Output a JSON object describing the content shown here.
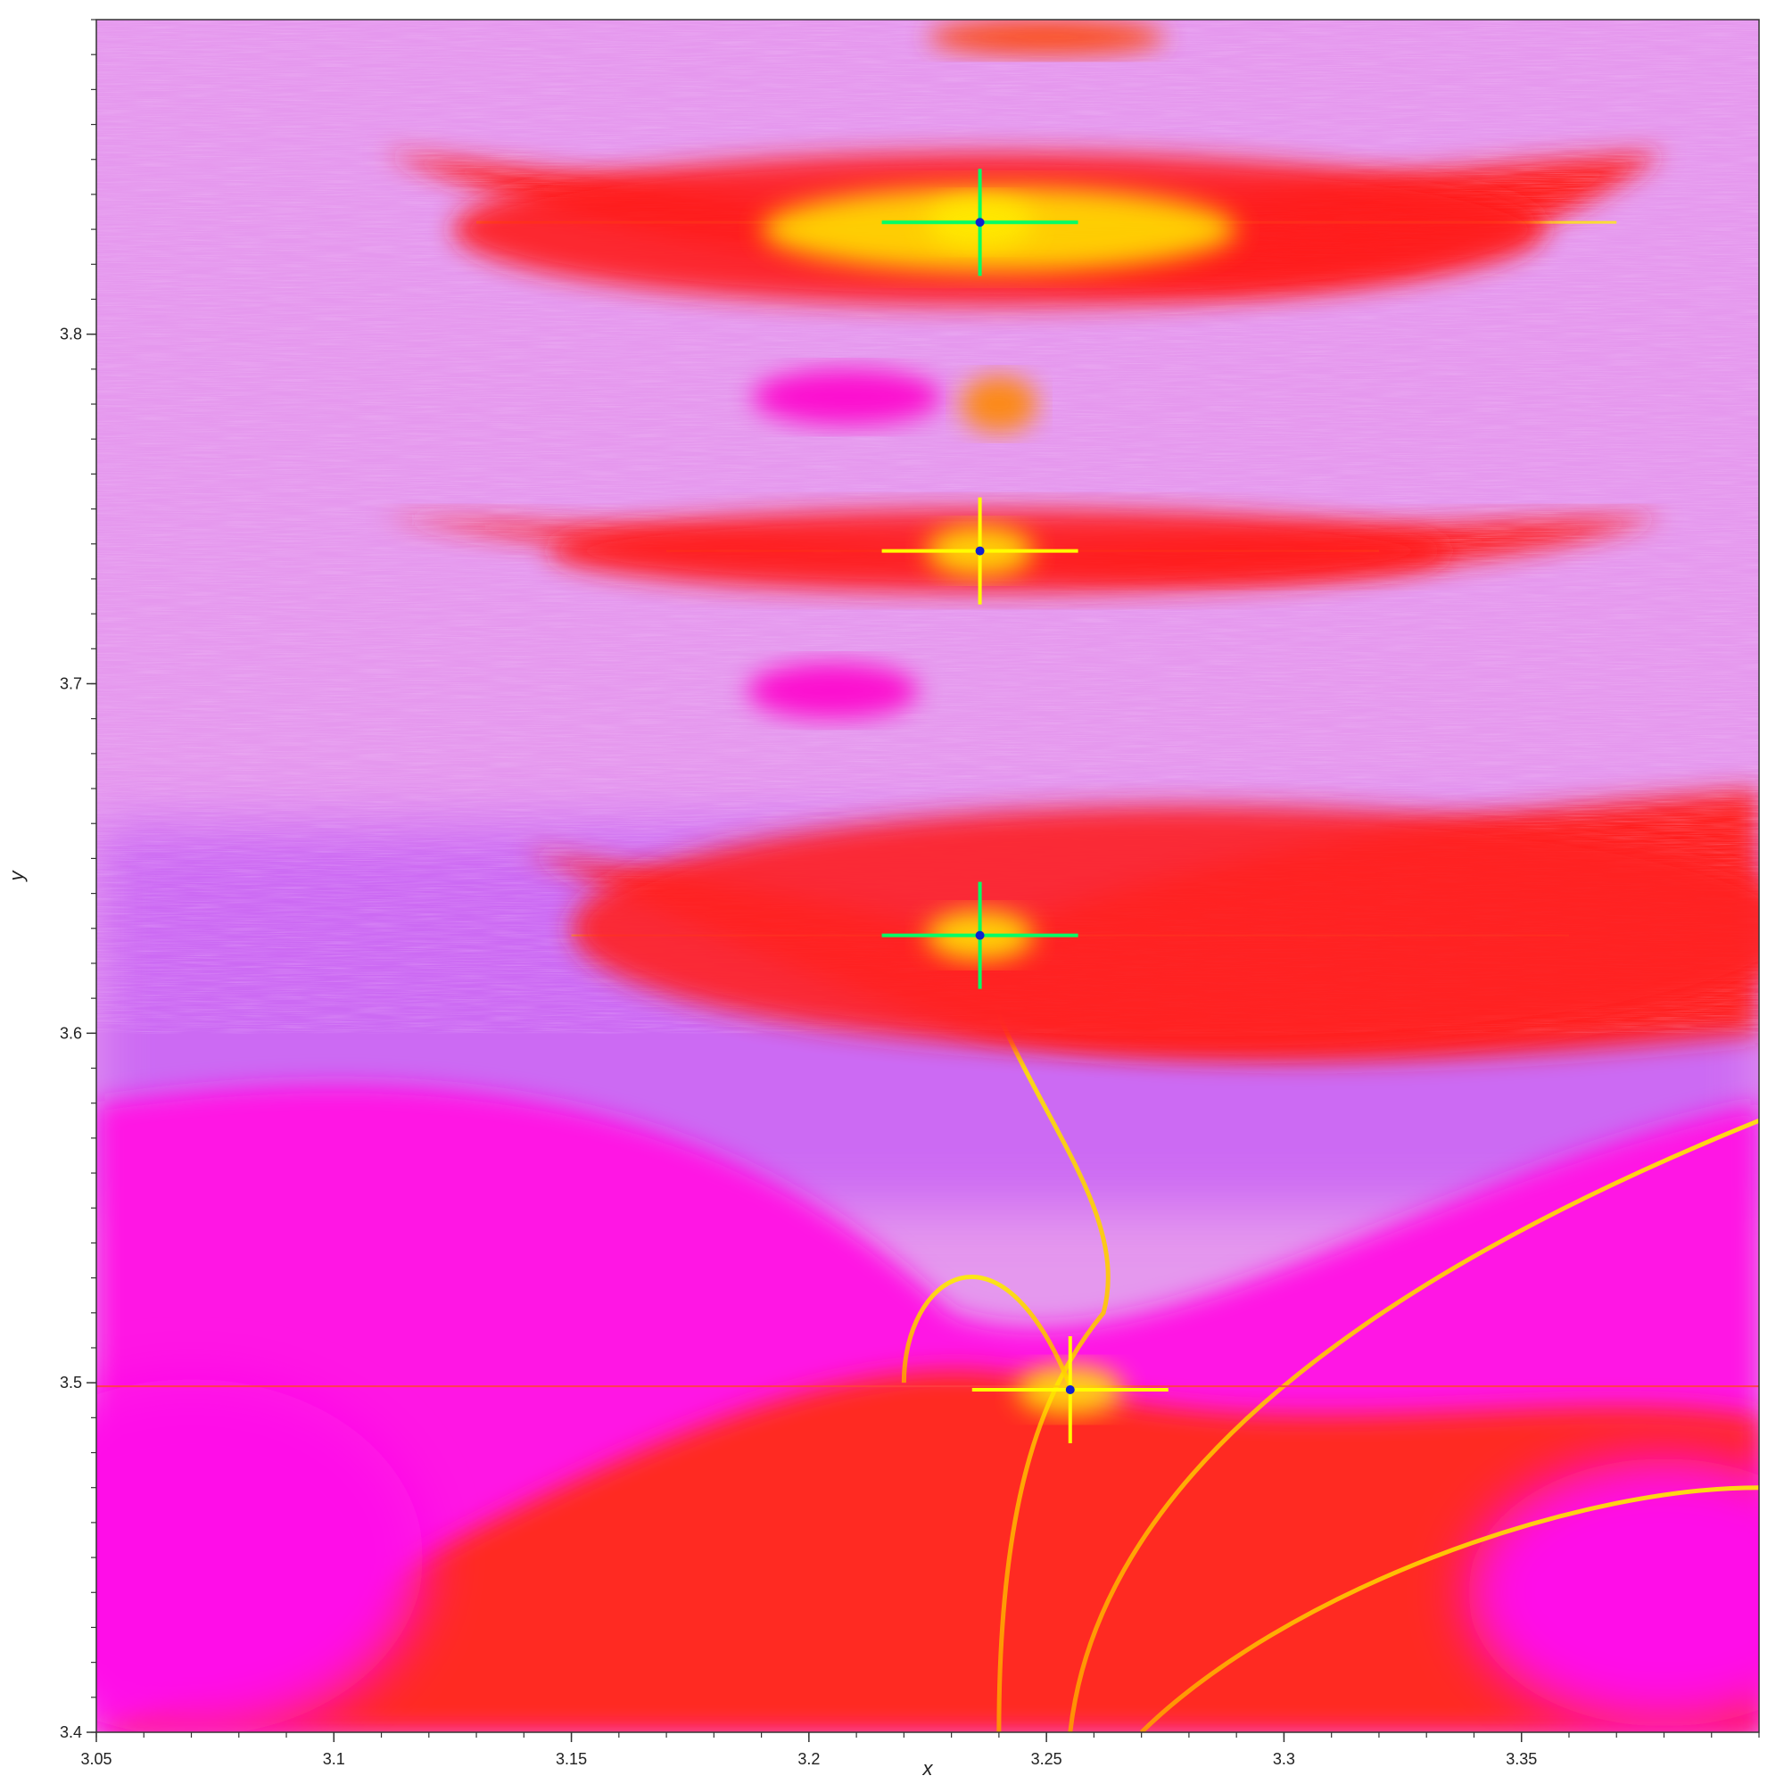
{
  "chart_data": {
    "type": "heatmap",
    "title": "",
    "xlabel": "x",
    "ylabel": "y",
    "xlim": [
      3.05,
      3.4
    ],
    "ylim": [
      3.4,
      3.89
    ],
    "x_ticks": [
      {
        "value": 3.05,
        "label": "3.05"
      },
      {
        "value": 3.1,
        "label": "3.1"
      },
      {
        "value": 3.15,
        "label": "3.15"
      },
      {
        "value": 3.2,
        "label": "3.2"
      },
      {
        "value": 3.25,
        "label": "3.25"
      },
      {
        "value": 3.3,
        "label": "3.3"
      },
      {
        "value": 3.35,
        "label": "3.35"
      }
    ],
    "y_ticks": [
      {
        "value": 3.4,
        "label": "3.4"
      },
      {
        "value": 3.5,
        "label": "3.5"
      },
      {
        "value": 3.6,
        "label": "3.6"
      },
      {
        "value": 3.7,
        "label": "3.7"
      },
      {
        "value": 3.8,
        "label": "3.8"
      }
    ],
    "minor_tick_step": 0.01,
    "grid": false,
    "legend": "none",
    "colormap": [
      "#0000cc",
      "#00ff88",
      "#ffff00",
      "#ffa500",
      "#ff2020",
      "#ff00ff",
      "#b030ff",
      "#e898f0"
    ],
    "background_color": "#e598ee",
    "features": [
      {
        "kind": "blob",
        "x": 3.24,
        "y": 3.83,
        "rx": 0.115,
        "ry": 0.022,
        "color": "#ff1a1a"
      },
      {
        "kind": "blob",
        "x": 3.24,
        "y": 3.83,
        "rx": 0.05,
        "ry": 0.012,
        "color": "#ffe000"
      },
      {
        "kind": "star",
        "x": 3.236,
        "y": 3.832,
        "color": "#00ff66"
      },
      {
        "kind": "blob",
        "x": 3.24,
        "y": 3.738,
        "rx": 0.095,
        "ry": 0.012,
        "color": "#ff1a1a"
      },
      {
        "kind": "star",
        "x": 3.236,
        "y": 3.738,
        "color": "#ffff00"
      },
      {
        "kind": "blob",
        "x": 3.28,
        "y": 3.63,
        "rx": 0.13,
        "ry": 0.035,
        "color": "#ff2020"
      },
      {
        "kind": "star",
        "x": 3.236,
        "y": 3.628,
        "color": "#00ff66"
      },
      {
        "kind": "star",
        "x": 3.255,
        "y": 3.498,
        "color": "#ffff00"
      },
      {
        "kind": "blob",
        "x": 3.208,
        "y": 3.782,
        "rx": 0.02,
        "ry": 0.008,
        "color": "#ff00cc"
      },
      {
        "kind": "blob",
        "x": 3.205,
        "y": 3.698,
        "rx": 0.018,
        "ry": 0.008,
        "color": "#ff00cc"
      },
      {
        "kind": "blob",
        "x": 3.25,
        "y": 3.885,
        "rx": 0.025,
        "ry": 0.005,
        "color": "#ff4400"
      },
      {
        "kind": "blob",
        "x": 3.24,
        "y": 3.78,
        "rx": 0.008,
        "ry": 0.008,
        "color": "#ff8800"
      }
    ]
  }
}
